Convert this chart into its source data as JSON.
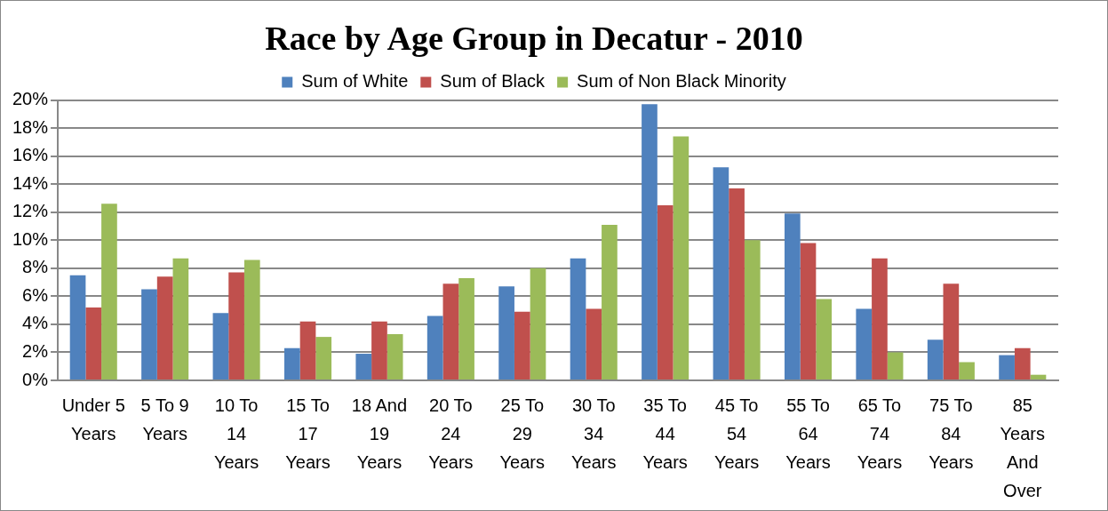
{
  "chart_data": {
    "type": "bar",
    "title": "Race by Age Group in Decatur - 2010",
    "categories": [
      "Under 5 Years",
      "5 To 9 Years",
      "10 To 14 Years",
      "15 To 17 Years",
      "18 And 19 Years",
      "20 To 24 Years",
      "25 To 29 Years",
      "30 To 34 Years",
      "35 To 44 Years",
      "45 To 54 Years",
      "55 To 64 Years",
      "65 To 74 Years",
      "75 To 84 Years",
      "85 Years And Over"
    ],
    "series": [
      {
        "name": "Sum of White",
        "color": "#4f81bd",
        "values": [
          7.5,
          6.5,
          4.8,
          2.3,
          1.9,
          4.6,
          6.7,
          8.7,
          19.7,
          15.2,
          11.9,
          5.1,
          2.9,
          1.8
        ]
      },
      {
        "name": "Sum of Black",
        "color": "#c0504d",
        "values": [
          5.2,
          7.4,
          7.7,
          4.2,
          4.2,
          6.9,
          4.9,
          5.1,
          12.5,
          13.7,
          9.8,
          8.7,
          6.9,
          2.3
        ]
      },
      {
        "name": "Sum of Non Black Minority",
        "color": "#9bbb59",
        "values": [
          12.6,
          8.7,
          8.6,
          3.1,
          3.3,
          7.3,
          8.0,
          11.1,
          17.4,
          10.0,
          5.8,
          2.0,
          1.3,
          0.4
        ]
      }
    ],
    "ylim": [
      0,
      20
    ],
    "yticks": [
      {
        "value": 0,
        "label": "0%"
      },
      {
        "value": 2,
        "label": "2%"
      },
      {
        "value": 4,
        "label": "4%"
      },
      {
        "value": 6,
        "label": "6%"
      },
      {
        "value": 8,
        "label": "8%"
      },
      {
        "value": 10,
        "label": "10%"
      },
      {
        "value": 12,
        "label": "12%"
      },
      {
        "value": 14,
        "label": "14%"
      },
      {
        "value": 16,
        "label": "16%"
      },
      {
        "value": 18,
        "label": "18%"
      },
      {
        "value": 20,
        "label": "20%"
      }
    ],
    "grid": "y",
    "legend": "top"
  }
}
